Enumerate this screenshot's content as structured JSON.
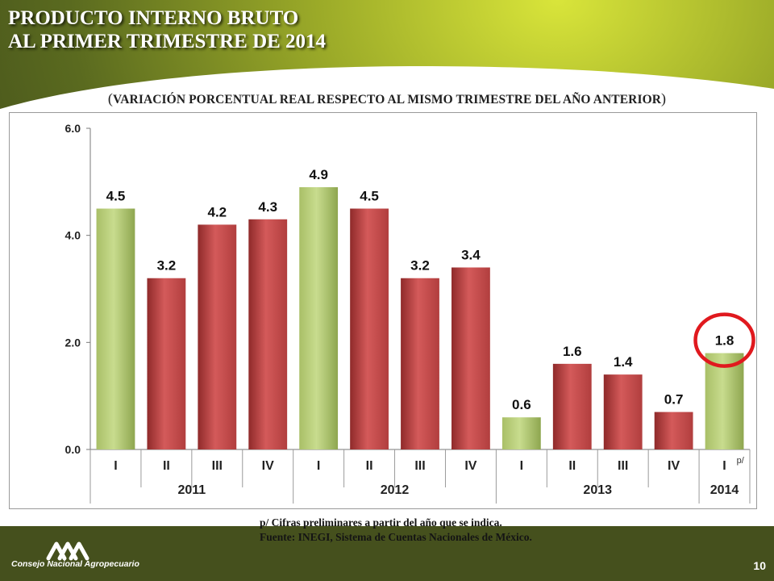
{
  "title": {
    "line1": "PRODUCTO INTERNO BRUTO",
    "line2": "AL PRIMER TRIMESTRE DE 2014"
  },
  "subtitle": {
    "open": "(",
    "text": "VARIACIÓN PORCENTUAL REAL RESPECTO AL MISMO TRIMESTRE DEL AÑO ANTERIOR",
    "close": ")"
  },
  "chart_data": {
    "type": "bar",
    "categories": [
      "I",
      "II",
      "III",
      "IV",
      "I",
      "II",
      "III",
      "IV",
      "I",
      "II",
      "III",
      "IV",
      "I"
    ],
    "year_groups": [
      {
        "label": "2011",
        "count": 4
      },
      {
        "label": "2012",
        "count": 4
      },
      {
        "label": "2013",
        "count": 4
      },
      {
        "label": "2014",
        "count": 1
      }
    ],
    "values": [
      4.5,
      3.2,
      4.2,
      4.3,
      4.9,
      4.5,
      3.2,
      3.4,
      0.6,
      1.6,
      1.4,
      0.7,
      1.8
    ],
    "data_labels": [
      "4.5",
      "3.2",
      "4.2",
      "4.3",
      "4.9",
      "4.5",
      "3.2",
      "3.4",
      "0.6",
      "1.6",
      "1.4",
      "0.7",
      "1.8"
    ],
    "bar_kinds": [
      "q1",
      "other",
      "other",
      "other",
      "q1",
      "other",
      "other",
      "other",
      "q1",
      "other",
      "other",
      "other",
      "q1"
    ],
    "ylim": [
      0,
      6
    ],
    "yticks": [
      0,
      2,
      4,
      6
    ],
    "ytick_labels": [
      "0.0",
      "2.0",
      "4.0",
      "6.0"
    ],
    "legend": "none",
    "grid": false,
    "preliminary_mark": "p/",
    "highlight_index": 12,
    "colors": {
      "q1_bar": "#c8dc8e",
      "other_bar": "#b13e3e",
      "highlight": "#e0191e"
    }
  },
  "footnotes": {
    "preliminary": "p/ Cifras preliminares a partir del año que se indica.",
    "source": "Fuente: INEGI, Sistema de Cuentas Nacionales de México."
  },
  "logo": {
    "icon": "cna-logo-icon",
    "text": "Consejo Nacional Agropecuario"
  },
  "page_number": "10"
}
